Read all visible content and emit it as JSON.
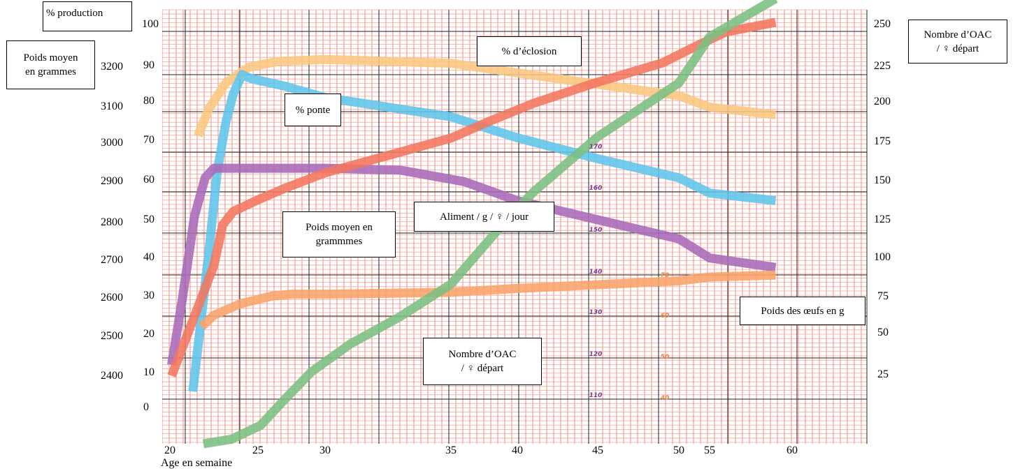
{
  "chart_data": {
    "type": "line",
    "xlabel": "Age en semaine",
    "x_ticks_main": [
      "20",
      "25",
      "30",
      "35",
      "40",
      "45"
    ],
    "x_ticks_secondary": [
      "50",
      "55",
      "60"
    ],
    "left_axis_production": {
      "title": "% production",
      "ticks": [
        "100",
        "90",
        "80",
        "70",
        "60",
        "50",
        "40",
        "30",
        "20",
        "10",
        "0"
      ]
    },
    "left_axis_weight": {
      "title": [
        "Poids moyen",
        "en grammes"
      ],
      "ticks": [
        "3200",
        "3100",
        "3000",
        "2900",
        "2800",
        "2700",
        "2600",
        "2500",
        "2400"
      ]
    },
    "right_axis_oac": {
      "title": [
        "Nombre d’OAC",
        "/ ♀ départ"
      ],
      "ticks": [
        "250",
        "225",
        "200",
        "175",
        "150",
        "125",
        "100",
        "75",
        "50",
        "25"
      ]
    },
    "inner_scale_feed": [
      "170",
      "160",
      "150",
      "140",
      "130",
      "120",
      "110"
    ],
    "inner_scale_egg": [
      "70",
      "60",
      "50",
      "40"
    ],
    "grid": true,
    "series": [
      {
        "name": "% d’éclosion",
        "color": "#f9c77f",
        "axis": "production",
        "points": [
          [
            21.6,
            71
          ],
          [
            22.2,
            78
          ],
          [
            23.2,
            85
          ],
          [
            24.5,
            89
          ],
          [
            26.5,
            90.5
          ],
          [
            30,
            91
          ],
          [
            35,
            90
          ],
          [
            40,
            87.5
          ],
          [
            45,
            84.5
          ],
          [
            50,
            81.5
          ],
          [
            55,
            78.5
          ],
          [
            59,
            76.5
          ]
        ]
      },
      {
        "name": "% ponte",
        "color": "#5ec5ec",
        "axis": "production",
        "points": [
          [
            21.3,
            4
          ],
          [
            22.2,
            40
          ],
          [
            22.7,
            62
          ],
          [
            23.2,
            75
          ],
          [
            23.6,
            82
          ],
          [
            24.1,
            87
          ],
          [
            24.6,
            86
          ],
          [
            27,
            84
          ],
          [
            30,
            81
          ],
          [
            35,
            76
          ],
          [
            40,
            70.5
          ],
          [
            45,
            65
          ],
          [
            50,
            60
          ],
          [
            55,
            56
          ],
          [
            59,
            54
          ]
        ]
      },
      {
        "name": "Aliment / g / ♀ / jour",
        "color": "#a96ab8",
        "axis": "production",
        "points": [
          [
            20.1,
            11
          ],
          [
            20.7,
            28
          ],
          [
            21.4,
            50
          ],
          [
            22,
            60
          ],
          [
            22.5,
            62.5
          ],
          [
            25,
            62.5
          ],
          [
            30,
            62.5
          ],
          [
            33,
            62
          ],
          [
            36,
            59
          ],
          [
            40,
            54
          ],
          [
            45,
            49
          ],
          [
            50,
            44
          ],
          [
            55,
            39
          ],
          [
            59,
            36.5
          ]
        ]
      },
      {
        "name": "Poids moyen en grammmes",
        "color": "#f2765f",
        "axis": "weight",
        "points": [
          [
            20.1,
            2399
          ],
          [
            22.5,
            2685
          ],
          [
            23,
            2790
          ],
          [
            23.6,
            2825
          ],
          [
            25,
            2855
          ],
          [
            27,
            2885
          ],
          [
            30,
            2925
          ],
          [
            32.5,
            2970
          ],
          [
            35,
            3015
          ],
          [
            38,
            3060
          ],
          [
            41,
            3105
          ],
          [
            45,
            3160
          ],
          [
            49,
            3210
          ],
          [
            53,
            3255
          ],
          [
            56,
            3290
          ],
          [
            59,
            3315
          ]
        ]
      },
      {
        "name": "Poids des œufs en g",
        "color": "#f9a36a",
        "axis": "production",
        "points": [
          [
            21.8,
            21
          ],
          [
            22.5,
            24
          ],
          [
            24,
            27
          ],
          [
            26,
            29
          ],
          [
            27.5,
            29.5
          ],
          [
            30,
            29.5
          ],
          [
            35,
            30
          ],
          [
            40,
            31
          ],
          [
            45,
            32
          ],
          [
            50,
            33
          ],
          [
            55,
            34
          ],
          [
            59,
            34.5
          ]
        ]
      },
      {
        "name": "Nombre d’OAC / ♀ départ",
        "color": "#7bbf82",
        "axis": "oac",
        "points": [
          [
            21.9,
            0
          ],
          [
            23.5,
            3
          ],
          [
            25.2,
            12
          ],
          [
            27,
            29
          ],
          [
            29,
            47
          ],
          [
            31,
            65
          ],
          [
            33,
            83
          ],
          [
            35,
            104
          ],
          [
            37,
            124
          ],
          [
            39,
            144
          ],
          [
            41,
            164
          ],
          [
            43,
            182
          ],
          [
            45,
            200
          ],
          [
            50,
            235
          ],
          [
            55,
            265
          ],
          [
            59,
            290
          ]
        ]
      }
    ]
  },
  "annotations": {
    "eclosion": "% d’éclosion",
    "ponte": "% ponte",
    "aliment": "Aliment / g / ♀ / jour",
    "poids_moyen": [
      "Poids moyen en",
      "grammmes"
    ],
    "poids_oeufs": "Poids des œufs en g",
    "oac": [
      "Nombre d’OAC",
      "/ ♀ départ"
    ]
  }
}
